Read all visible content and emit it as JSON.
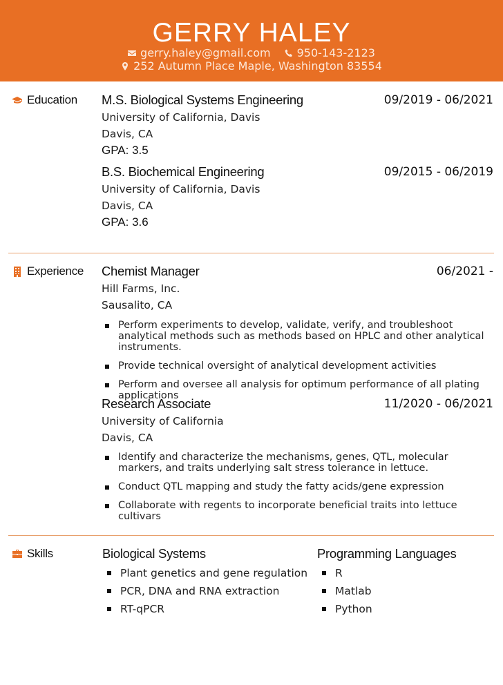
{
  "header": {
    "name": "GERRY HALEY",
    "email": "gerry.haley@gmail.com",
    "phone": "950-143-2123",
    "address": "252 Autumn Place Maple, Washington 83554",
    "bg_color": "#e86f24"
  },
  "education": {
    "label": "Education",
    "icon": "graduation-cap-icon",
    "entries": [
      {
        "title": "M.S. Biological Systems Engineering",
        "date": "09/2019 - 06/2021",
        "school": "University of California, Davis",
        "location": "Davis, CA",
        "gpa": "GPA: 3.5"
      },
      {
        "title": "B.S. Biochemical Engineering",
        "date": "09/2015 - 06/2019",
        "school": "University of California, Davis",
        "location": "Davis, CA",
        "gpa": "GPA: 3.6"
      }
    ]
  },
  "experience": {
    "label": "Experience",
    "icon": "building-icon",
    "entries": [
      {
        "title": "Chemist Manager",
        "date": "06/2021 -",
        "company": "Hill Farms, Inc.",
        "location": "Sausalito, CA",
        "bullets": [
          "Perform experiments to develop, validate, verify, and troubleshoot analytical methods such as methods based on HPLC and other analytical instruments.",
          "Provide technical oversight of analytical development activities",
          "Perform and oversee all analysis for optimum performance of all plating applications"
        ]
      },
      {
        "title": "Research Associate",
        "date": "11/2020 - 06/2021",
        "company": "University of California",
        "location": "Davis, CA",
        "bullets": [
          "Identify and characterize the mechanisms, genes, QTL, molecular markers, and traits underlying salt stress tolerance in lettuce.",
          "Conduct QTL mapping and study the fatty acids/gene expression",
          "Collaborate with regents to incorporate beneficial traits into lettuce cultivars"
        ]
      }
    ]
  },
  "skills": {
    "label": "Skills",
    "icon": "toolbox-icon",
    "groups": [
      {
        "title": "Biological Systems",
        "items": [
          "Plant genetics and gene regulation",
          "PCR, DNA and RNA extraction",
          "RT-qPCR"
        ]
      },
      {
        "title": "Programming Languages",
        "items": [
          "R",
          "Matlab",
          "Python"
        ]
      }
    ]
  }
}
